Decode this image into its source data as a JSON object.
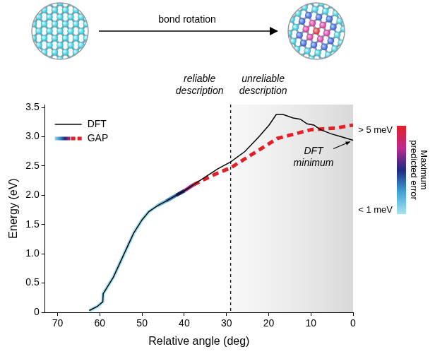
{
  "chart_data": {
    "type": "line",
    "xlabel": "Relative angle (deg)",
    "ylabel": "Energy (eV)",
    "xlim": [
      73,
      0
    ],
    "xticks": [
      70,
      60,
      50,
      40,
      30,
      20,
      10,
      0
    ],
    "ylim": [
      0,
      3.55
    ],
    "yticks": [
      0,
      0.5,
      {
        "value": 1,
        "label": "1.0"
      },
      1.5,
      {
        "value": 2,
        "label": "2.0"
      },
      2.5,
      {
        "value": 3,
        "label": "3.0"
      },
      3.5
    ],
    "grid": false,
    "legend": "top-left",
    "series": [
      {
        "name": "DFT",
        "color": "#000000",
        "line_style": "solid",
        "x": [
          62.5,
          60.6,
          59.3,
          59.2,
          58.5,
          56.8,
          55.2,
          53.6,
          52,
          50,
          48.4,
          46.4,
          44.3,
          41.9,
          39.9,
          37.8,
          35.3,
          32.1,
          29,
          25.6,
          22.3,
          19.9,
          18.2,
          16.6,
          14.2,
          12.5,
          10.9,
          9.3,
          7.7,
          5.2,
          2.8,
          0
        ],
        "values": [
          0.03,
          0.1,
          0.18,
          0.32,
          0.4,
          0.6,
          0.85,
          1.1,
          1.35,
          1.58,
          1.72,
          1.82,
          1.9,
          2,
          2.08,
          2.18,
          2.3,
          2.45,
          2.57,
          2.75,
          3,
          3.2,
          3.38,
          3.38,
          3.32,
          3.3,
          3.22,
          3.2,
          3.12,
          3.05,
          3,
          2.94
        ]
      },
      {
        "name": "GAP",
        "x": [
          62.5,
          60.6,
          59.3,
          59.2,
          58.5,
          56.8,
          55.2,
          53.6,
          52,
          50,
          48.4,
          46.4,
          44.3,
          41.9,
          39.9,
          37.8,
          33,
          29,
          18,
          10,
          4,
          0
        ],
        "values": [
          0.03,
          0.1,
          0.18,
          0.32,
          0.4,
          0.6,
          0.85,
          1.1,
          1.35,
          1.58,
          1.72,
          1.82,
          1.9,
          2,
          2.08,
          2.18,
          2.35,
          2.47,
          2.97,
          3.12,
          3.15,
          3.2
        ],
        "max_error": [
          0.5,
          0.5,
          0.5,
          0.5,
          0.5,
          0.5,
          0.5,
          0.6,
          0.6,
          0.7,
          0.8,
          1.2,
          1.8,
          2.6,
          3.4,
          4.3,
          6,
          6,
          6,
          6,
          6,
          6
        ]
      }
    ],
    "colorbar": {
      "label": "Maximum predicted error",
      "range": [
        1,
        5
      ],
      "ticks": [
        {
          "value": 5,
          "label": "> 5 meV"
        },
        {
          "value": 1,
          "label": "< 1 meV"
        }
      ]
    },
    "regions": [
      {
        "label": "reliable description",
        "from": 73,
        "to": 29
      },
      {
        "label": "unreliable description",
        "from": 29,
        "to": 0
      }
    ],
    "annotations": [
      {
        "text": "DFT minimum",
        "series": "DFT"
      }
    ],
    "schematic": {
      "arrow_label": "bond rotation"
    }
  }
}
